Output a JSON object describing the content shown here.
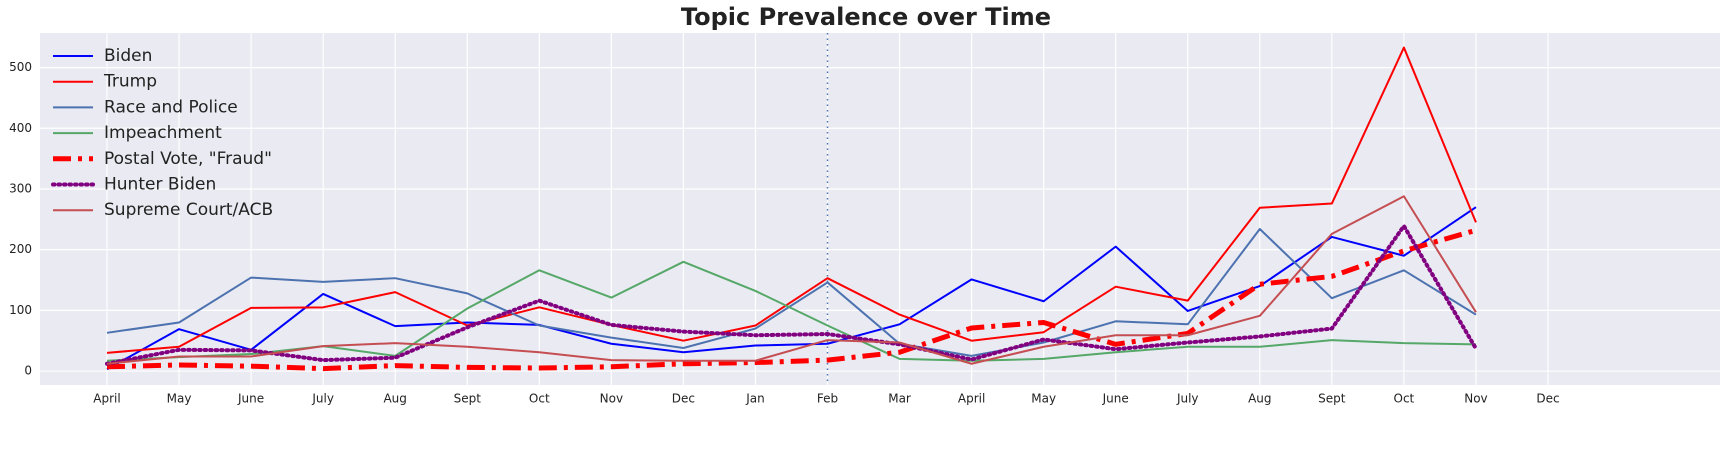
{
  "chart_data": {
    "type": "line",
    "title": "Topic Prevalence over Time",
    "categories": [
      "April",
      "May",
      "June",
      "July",
      "Aug",
      "Sept",
      "Oct",
      "Nov",
      "Dec",
      "Jan",
      "Feb",
      "Mar",
      "April",
      "May",
      "June",
      "July",
      "Aug",
      "Sept",
      "Oct",
      "Nov",
      "Dec"
    ],
    "series": [
      {
        "name": "Biden",
        "color": "#0000ff",
        "style": "solid",
        "width": 2,
        "values": [
          3,
          69,
          35,
          127,
          74,
          80,
          76,
          45,
          31,
          42,
          45,
          77,
          151,
          115,
          205,
          99,
          140,
          221,
          190,
          270,
          null
        ]
      },
      {
        "name": "Trump",
        "color": "#ff0000",
        "style": "solid",
        "width": 2,
        "values": [
          30,
          40,
          104,
          105,
          130,
          75,
          105,
          76,
          50,
          75,
          153,
          93,
          50,
          64,
          139,
          116,
          269,
          276,
          533,
          245,
          null
        ]
      },
      {
        "name": "Race and Police",
        "color": "#4c72b0",
        "style": "solid",
        "width": 2,
        "values": [
          63,
          80,
          154,
          147,
          153,
          128,
          75,
          55,
          38,
          70,
          146,
          45,
          25,
          47,
          82,
          77,
          234,
          120,
          166,
          93,
          null
        ]
      },
      {
        "name": "Impeachment",
        "color": "#55a868",
        "style": "solid",
        "width": 2,
        "values": [
          17,
          23,
          28,
          41,
          25,
          103,
          166,
          121,
          180,
          132,
          75,
          20,
          17,
          20,
          31,
          40,
          40,
          51,
          46,
          44,
          null
        ]
      },
      {
        "name": "Postal Vote, \"Fraud\"",
        "color": "#ff0000",
        "style": "dashdot",
        "width": 5,
        "values": [
          7,
          10,
          8,
          4,
          9,
          6,
          5,
          7,
          12,
          14,
          18,
          31,
          71,
          80,
          44,
          62,
          143,
          156,
          198,
          232,
          null
        ]
      },
      {
        "name": "Hunter Biden",
        "color": "#800080",
        "style": "dotted",
        "width": 4,
        "values": [
          12,
          35,
          34,
          18,
          22,
          72,
          116,
          76,
          65,
          59,
          61,
          44,
          19,
          52,
          36,
          47,
          57,
          70,
          239,
          37,
          null
        ]
      },
      {
        "name": "Supreme Court/ACB",
        "color": "#c44e52",
        "style": "solid",
        "width": 2,
        "values": [
          12,
          24,
          24,
          41,
          46,
          40,
          31,
          18,
          17,
          17,
          51,
          47,
          12,
          40,
          59,
          59,
          91,
          226,
          288,
          97,
          null
        ]
      }
    ],
    "ylim": [
      -23,
      557
    ],
    "yticks": [
      0,
      100,
      200,
      300,
      400,
      500
    ],
    "grid": true,
    "legend": "upper-left",
    "vline": {
      "category_index": 10,
      "color": "#4c72b0",
      "style": "dotted"
    }
  }
}
